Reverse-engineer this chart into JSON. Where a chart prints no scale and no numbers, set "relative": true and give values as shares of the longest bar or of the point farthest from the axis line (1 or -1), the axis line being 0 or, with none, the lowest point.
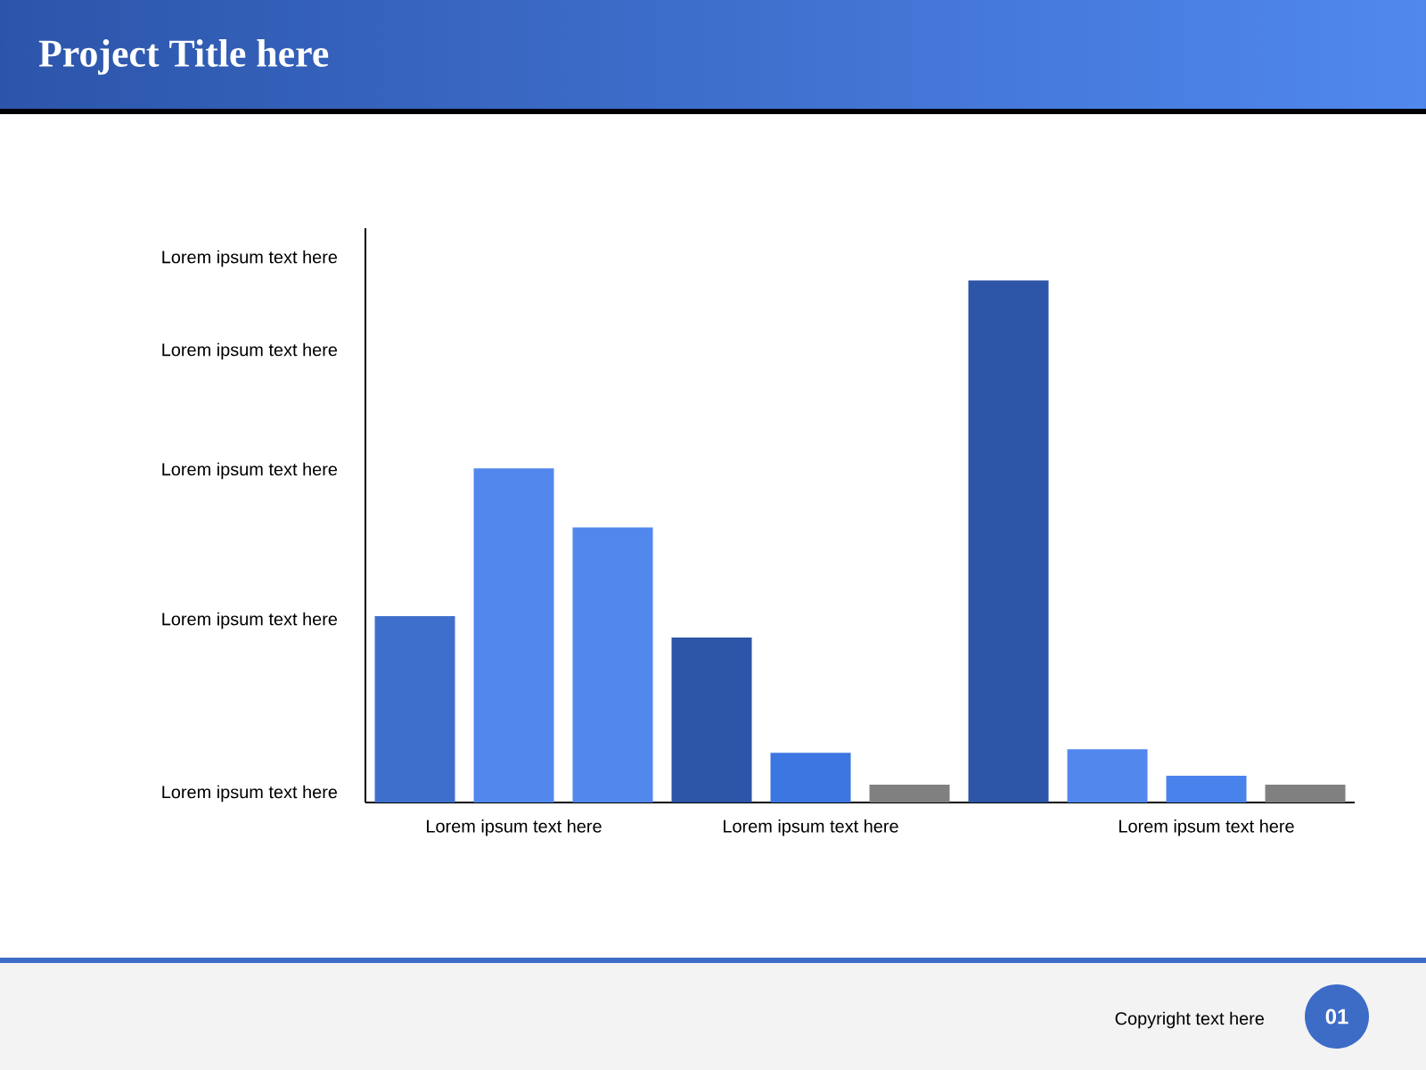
{
  "chart_data": {
    "type": "bar",
    "title": "Project Title here",
    "relative": true,
    "categories": [
      null,
      "Lorem ipsum text here",
      null,
      null,
      "Lorem ipsum text here",
      null,
      null,
      null,
      "Lorem ipsum text here",
      null
    ],
    "values": [
      0.357,
      0.64,
      0.527,
      0.316,
      0.095,
      0.034,
      1,
      0.102,
      0.051,
      0.034
    ],
    "colors": [
      "#3f6fcc",
      "#5288ee",
      "#5288ee",
      "#2d55a8",
      "#3c76e0",
      "#808080",
      "#2d55a8",
      "#5288ee",
      "#4a82ec",
      "#808080"
    ],
    "annotations": [
      "Lorem ipsum text here",
      "Lorem ipsum text here",
      "Lorem ipsum text here",
      "Lorem ipsum text here",
      "Lorem ipsum text here",
      "Copyright text here",
      "01"
    ]
  }
}
